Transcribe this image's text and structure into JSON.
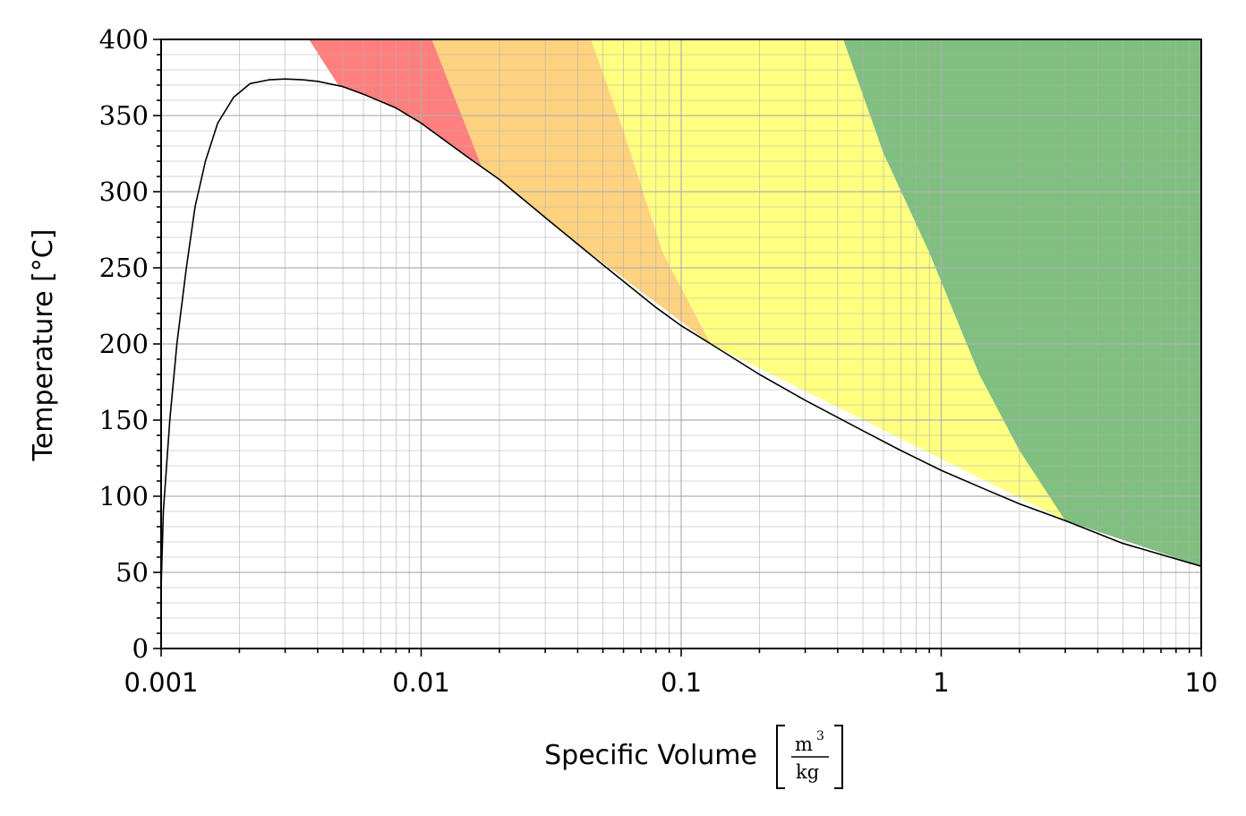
{
  "chart_data": {
    "type": "area",
    "title": "",
    "xlabel": "Specific Volume",
    "xlabel_unit": {
      "numerator": "m",
      "exponent": "3",
      "denominator": "kg"
    },
    "ylabel": "Temperature [°C]",
    "xscale": "log",
    "xlim": [
      0.001,
      10
    ],
    "ylim": [
      0,
      400
    ],
    "grid": {
      "major": true,
      "minor": true
    },
    "legend": "none",
    "xtick_labels": [
      "0.001",
      "0.01",
      "0.1",
      "1",
      "10"
    ],
    "xticks": [
      0.001,
      0.01,
      0.1,
      1,
      10
    ],
    "ytick_labels": [
      "0",
      "50",
      "100",
      "150",
      "200",
      "250",
      "300",
      "350",
      "400"
    ],
    "yticks": [
      0,
      50,
      100,
      150,
      200,
      250,
      300,
      350,
      400
    ],
    "saturation_curve": {
      "color": "#000000",
      "points": [
        [
          0.001,
          40
        ],
        [
          0.00102,
          90
        ],
        [
          0.00108,
          150
        ],
        [
          0.00115,
          200
        ],
        [
          0.00125,
          250
        ],
        [
          0.00135,
          290
        ],
        [
          0.00148,
          320
        ],
        [
          0.00165,
          345
        ],
        [
          0.0019,
          362
        ],
        [
          0.0022,
          371
        ],
        [
          0.0026,
          373.5
        ],
        [
          0.003,
          374
        ],
        [
          0.0035,
          373.5
        ],
        [
          0.004,
          372.5
        ],
        [
          0.005,
          369
        ],
        [
          0.006,
          364
        ],
        [
          0.008,
          355
        ],
        [
          0.01,
          345
        ],
        [
          0.015,
          323
        ],
        [
          0.02,
          308
        ],
        [
          0.03,
          283
        ],
        [
          0.05,
          252
        ],
        [
          0.08,
          224
        ],
        [
          0.1,
          212
        ],
        [
          0.13,
          200
        ],
        [
          0.2,
          180
        ],
        [
          0.3,
          163
        ],
        [
          0.5,
          143
        ],
        [
          0.7,
          130
        ],
        [
          1,
          117
        ],
        [
          1.5,
          104
        ],
        [
          2,
          95
        ],
        [
          3,
          84
        ],
        [
          5,
          69
        ],
        [
          10,
          54
        ]
      ]
    },
    "regions": [
      {
        "color": "#ff7f7f",
        "left_boundary": [
          [
            0.0037,
            400
          ],
          [
            0.0048,
            370
          ]
        ],
        "right_boundary": [
          [
            0.011,
            400
          ],
          [
            0.0175,
            312
          ]
        ]
      },
      {
        "color": "#ffd280",
        "left_boundary": [
          [
            0.011,
            400
          ],
          [
            0.0175,
            312
          ]
        ],
        "right_boundary": [
          [
            0.045,
            400
          ],
          [
            0.06,
            340
          ],
          [
            0.085,
            260
          ],
          [
            0.13,
            200
          ]
        ]
      },
      {
        "color": "#ffff80",
        "left_boundary": [
          [
            0.045,
            400
          ],
          [
            0.06,
            340
          ],
          [
            0.085,
            260
          ],
          [
            0.13,
            200
          ]
        ],
        "right_boundary": [
          [
            0.42,
            400
          ],
          [
            0.6,
            325
          ],
          [
            0.9,
            260
          ],
          [
            1.4,
            180
          ],
          [
            2,
            130
          ],
          [
            3,
            84
          ]
        ]
      },
      {
        "color": "#80bf80",
        "left_boundary": [
          [
            0.42,
            400
          ],
          [
            0.6,
            325
          ],
          [
            0.9,
            260
          ],
          [
            1.4,
            180
          ],
          [
            2,
            130
          ],
          [
            3,
            84
          ]
        ],
        "right_boundary": [
          [
            10,
            400
          ],
          [
            10,
            54
          ]
        ]
      }
    ]
  }
}
